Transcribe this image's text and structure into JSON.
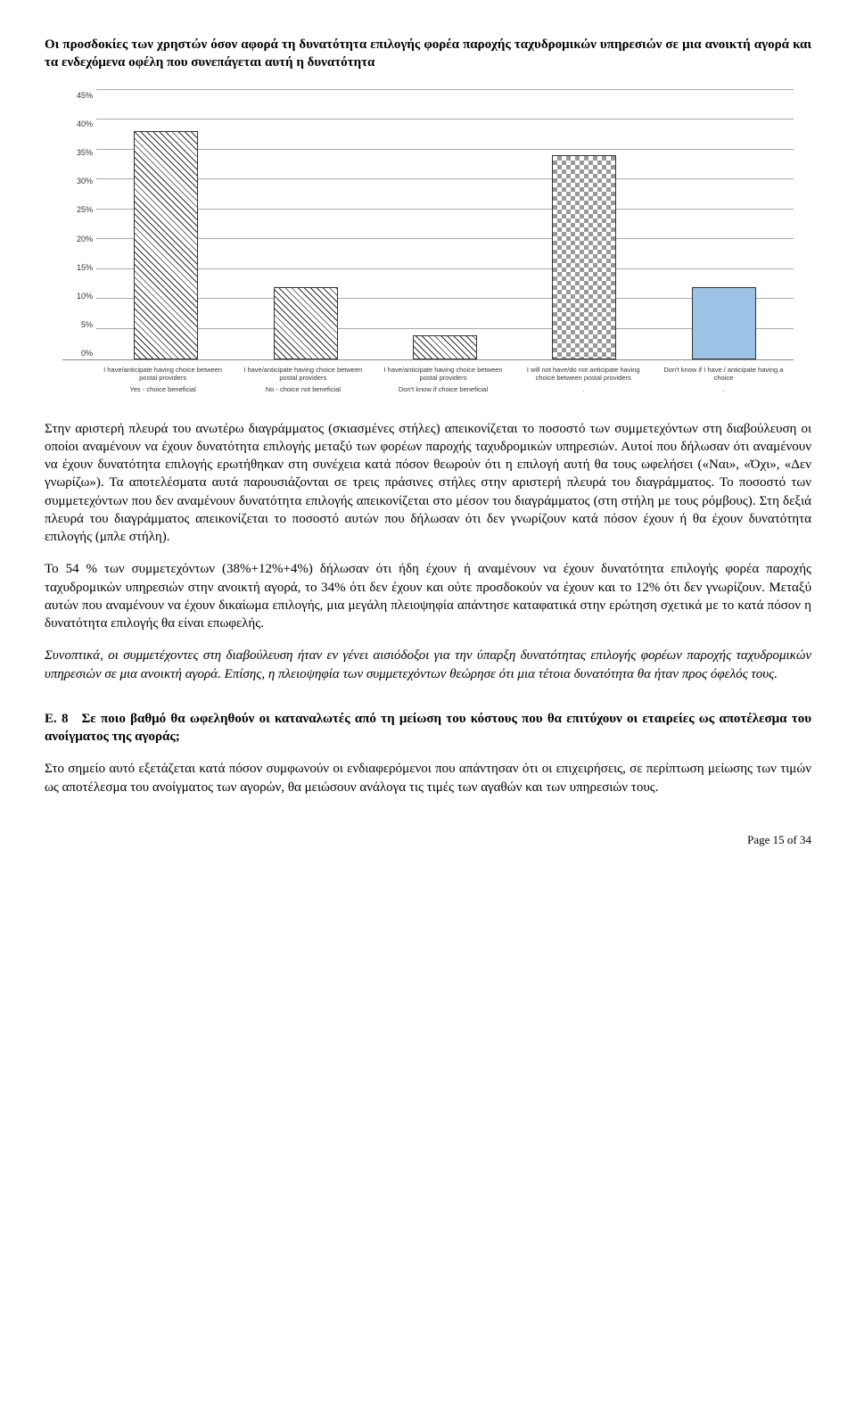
{
  "doc": {
    "title": "Οι προσδοκίες των χρηστών όσον αφορά τη δυνατότητα επιλογής φορέα παροχής ταχυδρομικών υπηρεσιών σε μια ανοικτή αγορά και τα ενδεχόμενα οφέλη που συνεπάγεται αυτή η δυνατότητα",
    "para1": "Στην αριστερή πλευρά του ανωτέρω διαγράμματος (σκιασμένες στήλες) απεικονίζεται το ποσοστό των συμμετεχόντων στη διαβούλευση οι οποίοι αναμένουν να έχουν δυνατότητα επιλογής μεταξύ των φορέων παροχής ταχυδρομικών υπηρεσιών. Αυτοί που δήλωσαν ότι αναμένουν να έχουν δυνατότητα επιλογής ερωτήθηκαν στη συνέχεια κατά πόσον θεωρούν ότι η επιλογή αυτή θα τους ωφελήσει («Ναι», «Όχι», «Δεν γνωρίζω»). Τα αποτελέσματα αυτά παρουσιάζονται σε τρεις πράσινες στήλες στην αριστερή πλευρά του διαγράμματος. Το ποσοστό των συμμετεχόντων που δεν αναμένουν δυνατότητα επιλογής απεικονίζεται στο μέσον του διαγράμματος (στη στήλη με τους ρόμβους). Στη δεξιά πλευρά του διαγράμματος απεικονίζεται το ποσοστό αυτών που δήλωσαν ότι δεν γνωρίζουν κατά πόσον έχουν ή θα έχουν δυνατότητα επιλογής (μπλε στήλη).",
    "para2": "Το 54 % των συμμετεχόντων (38%+12%+4%) δήλωσαν ότι ήδη έχουν ή αναμένουν να έχουν δυνατότητα επιλογής φορέα παροχής ταχυδρομικών υπηρεσιών στην ανοικτή αγορά, το 34% ότι δεν έχουν και ούτε προσδοκούν να έχουν και το 12% ότι δεν γνωρίζουν. Μεταξύ αυτών που αναμένουν να έχουν δικαίωμα επιλογής, μια μεγάλη πλειοψηφία απάντησε καταφατικά στην ερώτηση σχετικά με το κατά πόσον η δυνατότητα επιλογής θα είναι επωφελής.",
    "para3": "Συνοπτικά, οι συμμετέχοντες στη διαβούλευση ήταν εν γένει αισιόδοξοι για την ύπαρξη δυνατότητας επιλογής φορέων παροχής ταχυδρομικών υπηρεσιών σε μια ανοικτή αγορά. Επίσης, η πλειοψηφία των συμμετεχόντων θεώρησε ότι μια τέτοια δυνατότητα θα ήταν προς όφελός τους.",
    "section_heading": "Ε. 8 Σε ποιο βαθμό θα ωφεληθούν οι καταναλωτές από τη μείωση του κόστους που θα επιτύχουν οι εταιρείες ως αποτέλεσμα του ανοίγματος της αγοράς;",
    "para4": "Στο σημείο αυτό εξετάζεται κατά πόσον συμφωνούν οι ενδιαφερόμενοι που απάντησαν ότι οι επιχειρήσεις, σε περίπτωση μείωσης των τιμών ως αποτέλεσμα του ανοίγματος των αγορών, θα μειώσουν ανάλογα τις τιμές των αγαθών και των υπηρεσιών τους.",
    "page_number": "Page 15 of 34"
  },
  "chart": {
    "type": "bar",
    "ylim": [
      0,
      45
    ],
    "ytick_step": 5,
    "grid_color": "#aaaaaa",
    "background_color": "#ffffff",
    "bar_border_color": "#333333",
    "label_fontsize": 8,
    "yticks": [
      "45%",
      "40%",
      "35%",
      "30%",
      "25%",
      "20%",
      "15%",
      "10%",
      "5%",
      "0%"
    ],
    "bars": [
      {
        "value": 38,
        "pattern": "diag",
        "label_line1": "I have/anticipate having choice between postal providers",
        "label_line2": "Yes - choice beneficial"
      },
      {
        "value": 12,
        "pattern": "diag",
        "label_line1": "I have/anticipate having choice between postal providers",
        "label_line2": "No - choice not beneficial"
      },
      {
        "value": 4,
        "pattern": "diag",
        "label_line1": "I have/anticipate having choice between postal providers",
        "label_line2": "Don't know if choice beneficial"
      },
      {
        "value": 34,
        "pattern": "diamond",
        "label_line1": "I will not  have/do not anticipate having choice between postal providers",
        "label_line2": "."
      },
      {
        "value": 12,
        "pattern": "blue",
        "label_line1": "Don't know if I have / anticipate having a choice",
        "label_line2": "."
      }
    ],
    "colors": {
      "diag_fg": "#333333",
      "diag_bg": "#ffffff",
      "diamond_fg": "#999999",
      "blue_fill": "#9cc3e6"
    }
  }
}
